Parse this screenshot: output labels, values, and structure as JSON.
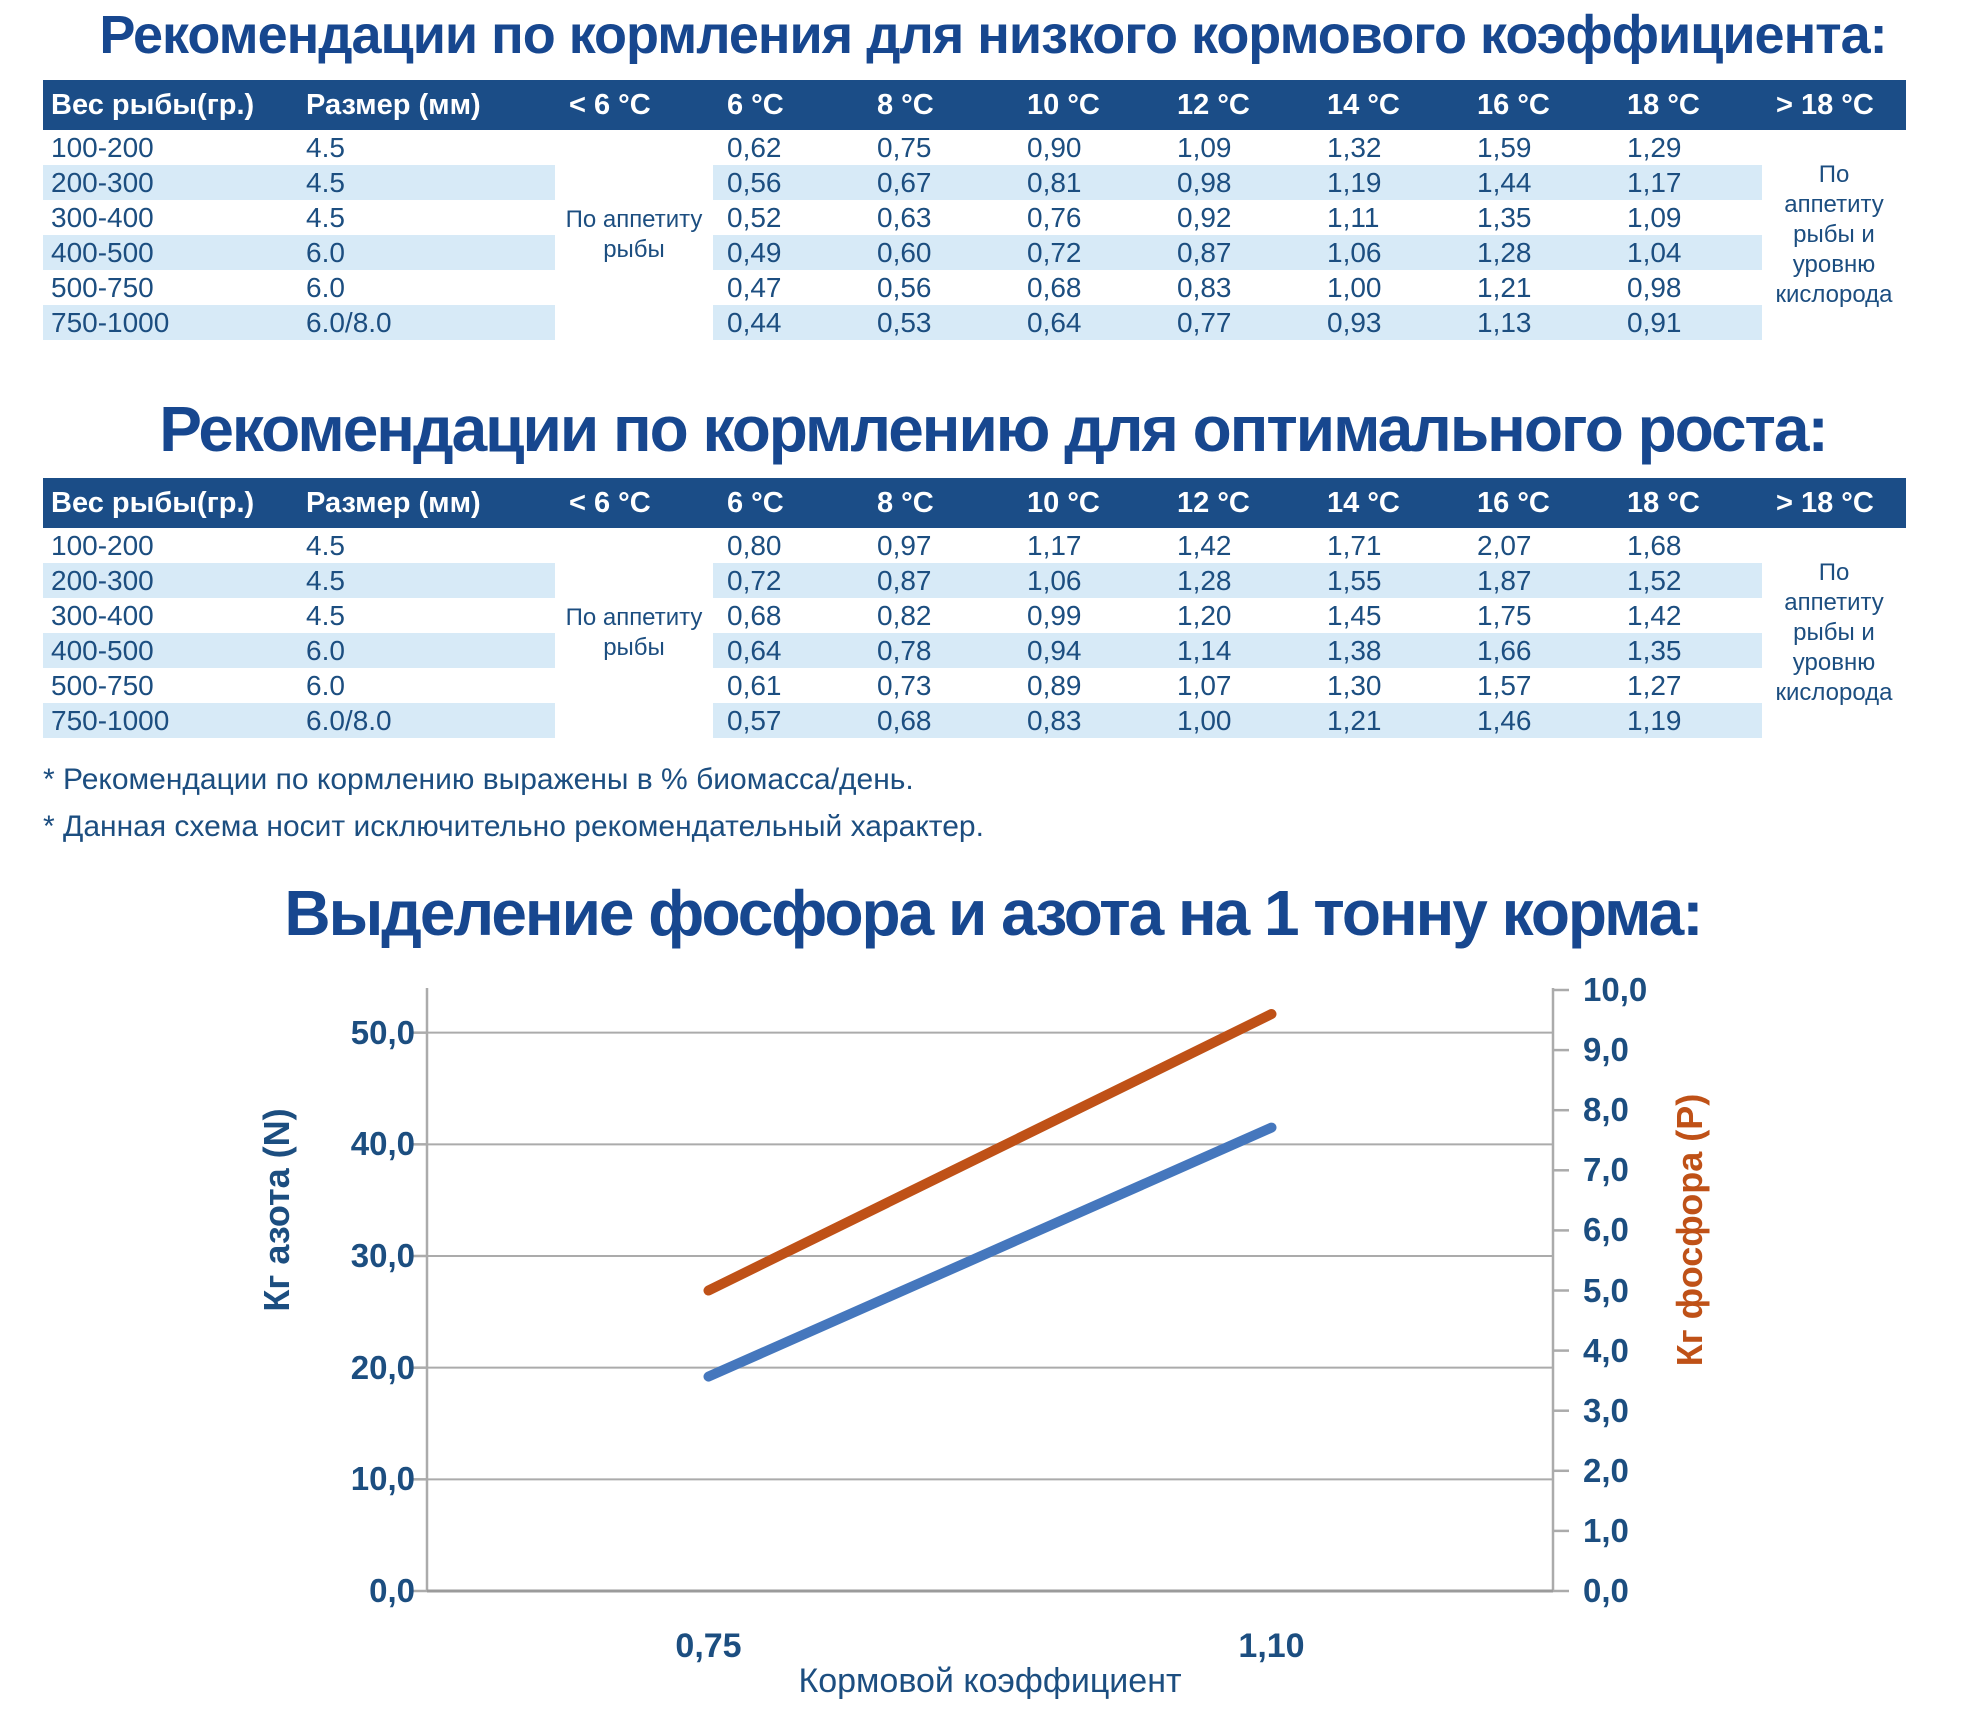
{
  "colors": {
    "navy_text": "#1C4E80",
    "title_navy": "#17478F",
    "table_header_bg": "#1B4D87",
    "row_stripe": "#D7EAF7",
    "grid_gray": "#ABABAB",
    "nitrogen_blue": "#4577BD",
    "phosphorus_orange": "#BF5117"
  },
  "table1": {
    "title": "Рекомендации по кормления для низкого кормового коэффициента:",
    "headers": [
      "Вес рыбы(гр.)",
      "Размер (мм)",
      "< 6 °C",
      "6 °C",
      "8 °C",
      "10 °C",
      "12 °C",
      "14 °C",
      "16 °C",
      "18 °C",
      "> 18 °C"
    ],
    "cold_note": "По аппетиту рыбы",
    "warm_note": "По аппетиту рыбы и уровню кислорода",
    "rows": [
      {
        "weight": "100-200",
        "size": "4.5",
        "values": [
          "0,62",
          "0,75",
          "0,90",
          "1,09",
          "1,32",
          "1,59",
          "1,29"
        ]
      },
      {
        "weight": "200-300",
        "size": "4.5",
        "values": [
          "0,56",
          "0,67",
          "0,81",
          "0,98",
          "1,19",
          "1,44",
          "1,17"
        ]
      },
      {
        "weight": "300-400",
        "size": "4.5",
        "values": [
          "0,52",
          "0,63",
          "0,76",
          "0,92",
          "1,11",
          "1,35",
          "1,09"
        ]
      },
      {
        "weight": "400-500",
        "size": "6.0",
        "values": [
          "0,49",
          "0,60",
          "0,72",
          "0,87",
          "1,06",
          "1,28",
          "1,04"
        ]
      },
      {
        "weight": "500-750",
        "size": "6.0",
        "values": [
          "0,47",
          "0,56",
          "0,68",
          "0,83",
          "1,00",
          "1,21",
          "0,98"
        ]
      },
      {
        "weight": "750-1000",
        "size": "6.0/8.0",
        "values": [
          "0,44",
          "0,53",
          "0,64",
          "0,77",
          "0,93",
          "1,13",
          "0,91"
        ]
      }
    ]
  },
  "table2": {
    "title": "Рекомендации по кормлению для оптимального роста:",
    "headers": [
      "Вес рыбы(гр.)",
      "Размер (мм)",
      "< 6 °C",
      "6 °C",
      "8 °C",
      "10 °C",
      "12 °C",
      "14 °C",
      "16 °C",
      "18 °C",
      "> 18 °C"
    ],
    "cold_note": "По аппетиту рыбы",
    "warm_note": "По аппетиту рыбы и уровню кислорода",
    "rows": [
      {
        "weight": "100-200",
        "size": "4.5",
        "values": [
          "0,80",
          "0,97",
          "1,17",
          "1,42",
          "1,71",
          "2,07",
          "1,68"
        ]
      },
      {
        "weight": "200-300",
        "size": "4.5",
        "values": [
          "0,72",
          "0,87",
          "1,06",
          "1,28",
          "1,55",
          "1,87",
          "1,52"
        ]
      },
      {
        "weight": "300-400",
        "size": "4.5",
        "values": [
          "0,68",
          "0,82",
          "0,99",
          "1,20",
          "1,45",
          "1,75",
          "1,42"
        ]
      },
      {
        "weight": "400-500",
        "size": "6.0",
        "values": [
          "0,64",
          "0,78",
          "0,94",
          "1,14",
          "1,38",
          "1,66",
          "1,35"
        ]
      },
      {
        "weight": "500-750",
        "size": "6.0",
        "values": [
          "0,61",
          "0,73",
          "0,89",
          "1,07",
          "1,30",
          "1,57",
          "1,27"
        ]
      },
      {
        "weight": "750-1000",
        "size": "6.0/8.0",
        "values": [
          "0,57",
          "0,68",
          "0,83",
          "1,00",
          "1,21",
          "1,46",
          "1,19"
        ]
      }
    ]
  },
  "footnotes": [
    "* Рекомендации по кормлению выражены в % биомасса/день.",
    "* Данная схема носит исключительно рекомендательный характер."
  ],
  "chart_data": {
    "type": "line",
    "title": "Выделение фосфора и азота на 1 тонну корма:",
    "xlabel": "Кормовой коэффициент",
    "categories": [
      "0,75",
      "1,10"
    ],
    "series": [
      {
        "name": "Кг азота (N)",
        "axis": "left",
        "color": "#4577BD",
        "values": [
          19.2,
          41.5
        ]
      },
      {
        "name": "Кг фосфора (Р)",
        "axis": "right",
        "color": "#BF5117",
        "values": [
          5.0,
          9.6
        ]
      }
    ],
    "left_axis": {
      "label": "Кг азота (N)",
      "min": 0,
      "max": 54,
      "tick_step": 10,
      "tick_labels": [
        "0,0",
        "10,0",
        "20,0",
        "30,0",
        "40,0",
        "50,0"
      ]
    },
    "right_axis": {
      "label": "Кг фосфора (Р)",
      "min": 0,
      "max": 10,
      "tick_step": 1,
      "tick_labels": [
        "0,0",
        "1,0",
        "2,0",
        "3,0",
        "4,0",
        "5,0",
        "6,0",
        "7,0",
        "8,0",
        "9,0",
        "10,0"
      ]
    },
    "grid": true,
    "legend": "none"
  }
}
